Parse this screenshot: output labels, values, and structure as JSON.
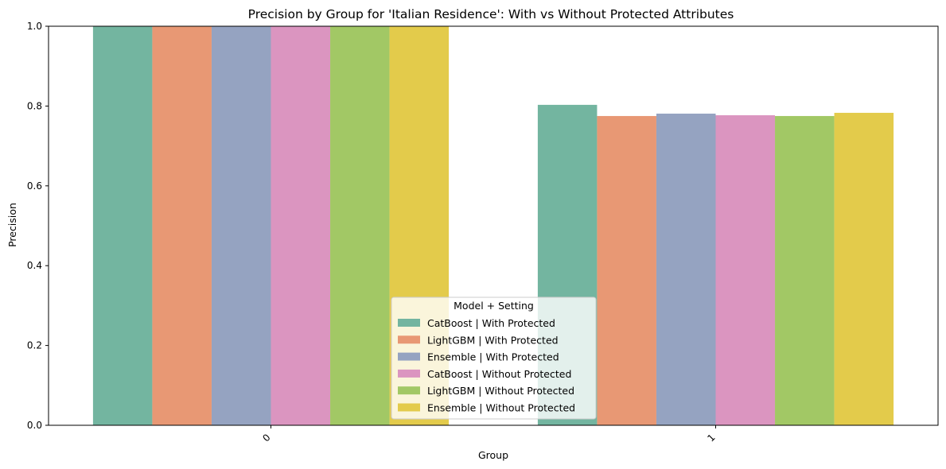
{
  "chart_data": {
    "type": "bar",
    "title": "Precision by Group for 'Italian Residence': With vs Without Protected Attributes",
    "xlabel": "Group",
    "ylabel": "Precision",
    "categories": [
      "0",
      "1"
    ],
    "ylim": [
      0,
      1.0
    ],
    "yticks": [
      "0.0",
      "0.2",
      "0.4",
      "0.6",
      "0.8",
      "1.0"
    ],
    "grid": false,
    "legend_title": "Model + Setting",
    "legend_position": "bottom-center",
    "series": [
      {
        "name": "CatBoost | With Protected",
        "color": "#73b5a0",
        "values": [
          1.0,
          0.803
        ]
      },
      {
        "name": "LightGBM | With Protected",
        "color": "#e89874",
        "values": [
          1.0,
          0.775
        ]
      },
      {
        "name": "Ensemble | With Protected",
        "color": "#95a3c1",
        "values": [
          1.0,
          0.781
        ]
      },
      {
        "name": "CatBoost | Without Protected",
        "color": "#db95c0",
        "values": [
          1.0,
          0.777
        ]
      },
      {
        "name": "LightGBM | Without Protected",
        "color": "#a2c865",
        "values": [
          1.0,
          0.775
        ]
      },
      {
        "name": "Ensemble | Without Protected",
        "color": "#e3cb4b",
        "values": [
          1.0,
          0.783
        ]
      }
    ]
  }
}
